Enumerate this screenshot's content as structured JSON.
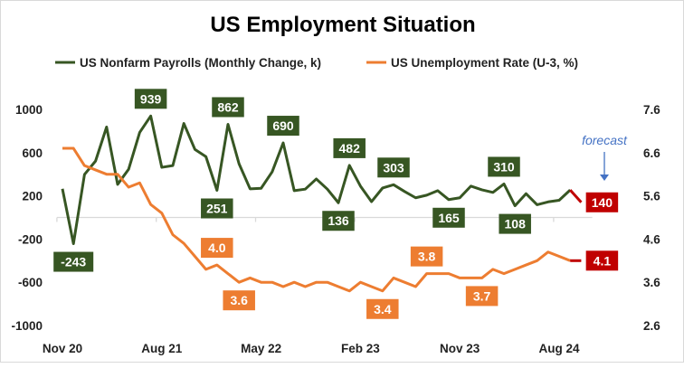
{
  "chart_data": {
    "type": "line",
    "title": "US Employment Situation",
    "x": [
      "Nov 20",
      "Dec 20",
      "Jan 21",
      "Feb 21",
      "Mar 21",
      "Apr 21",
      "May 21",
      "Jun 21",
      "Jul 21",
      "Aug 21",
      "Sep 21",
      "Oct 21",
      "Nov 21",
      "Dec 21",
      "Jan 22",
      "Feb 22",
      "Mar 22",
      "Apr 22",
      "May 22",
      "Jun 22",
      "Jul 22",
      "Aug 22",
      "Sep 22",
      "Oct 22",
      "Nov 22",
      "Dec 22",
      "Jan 23",
      "Feb 23",
      "Mar 23",
      "Apr 23",
      "May 23",
      "Jun 23",
      "Jul 23",
      "Aug 23",
      "Sep 23",
      "Oct 23",
      "Nov 23",
      "Dec 23",
      "Jan 24",
      "Feb 24",
      "Mar 24",
      "Apr 24",
      "May 24",
      "Jun 24",
      "Jul 24",
      "Aug 24",
      "Sep 24",
      "Oct 24"
    ],
    "x_tick_labels": [
      "Nov 20",
      "Aug 21",
      "May 22",
      "Feb 23",
      "Nov 23",
      "Aug 24"
    ],
    "series": [
      {
        "name": "US Nonfarm Payrolls (Monthly Change, k)",
        "axis": "left",
        "color": "#375623",
        "values": [
          265,
          -243,
          398,
          522,
          837,
          306,
          447,
          787,
          939,
          464,
          480,
          870,
          630,
          563,
          251,
          862,
          497,
          265,
          270,
          422,
          690,
          248,
          262,
          356,
          262,
          136,
          482,
          290,
          146,
          272,
          303,
          240,
          182,
          206,
          248,
          165,
          182,
          290,
          256,
          232,
          310,
          108,
          220,
          118,
          144,
          159,
          254,
          140
        ],
        "labeled": {
          "1": "-243",
          "8": "939",
          "14": "251",
          "15": "862",
          "20": "690",
          "25": "136",
          "26": "482",
          "30": "303",
          "35": "165",
          "40": "310",
          "41": "108",
          "47": "140"
        }
      },
      {
        "name": "US Unemployment Rate (U-3, %)",
        "axis": "right",
        "color": "#ED7D31",
        "values": [
          6.7,
          6.7,
          6.3,
          6.2,
          6.1,
          6.1,
          5.8,
          5.9,
          5.4,
          5.2,
          4.7,
          4.5,
          4.2,
          3.9,
          4.0,
          3.8,
          3.6,
          3.7,
          3.6,
          3.6,
          3.5,
          3.6,
          3.5,
          3.6,
          3.6,
          3.5,
          3.4,
          3.6,
          3.5,
          3.4,
          3.7,
          3.6,
          3.5,
          3.8,
          3.8,
          3.8,
          3.7,
          3.7,
          3.7,
          3.9,
          3.8,
          3.9,
          4.0,
          4.1,
          4.3,
          4.2,
          4.1,
          4.1
        ],
        "labeled": {
          "14": "4.0",
          "16": "3.6",
          "29": "3.4",
          "33": "3.8",
          "38": "3.7",
          "47": "4.1"
        }
      }
    ],
    "forecast": {
      "label": "forecast",
      "from_index": 46,
      "color": "#C00000",
      "annotation_color": "#4472C4"
    },
    "y_left": {
      "ylim": [
        -1000,
        1000
      ],
      "ticks": [
        "-1000",
        "-600",
        "-200",
        "200",
        "600",
        "1000"
      ]
    },
    "y_right": {
      "ylim": [
        2.6,
        7.6
      ],
      "ticks": [
        "2.6",
        "3.6",
        "4.6",
        "5.6",
        "6.6",
        "7.6"
      ]
    },
    "grid": false,
    "legend": "top"
  }
}
